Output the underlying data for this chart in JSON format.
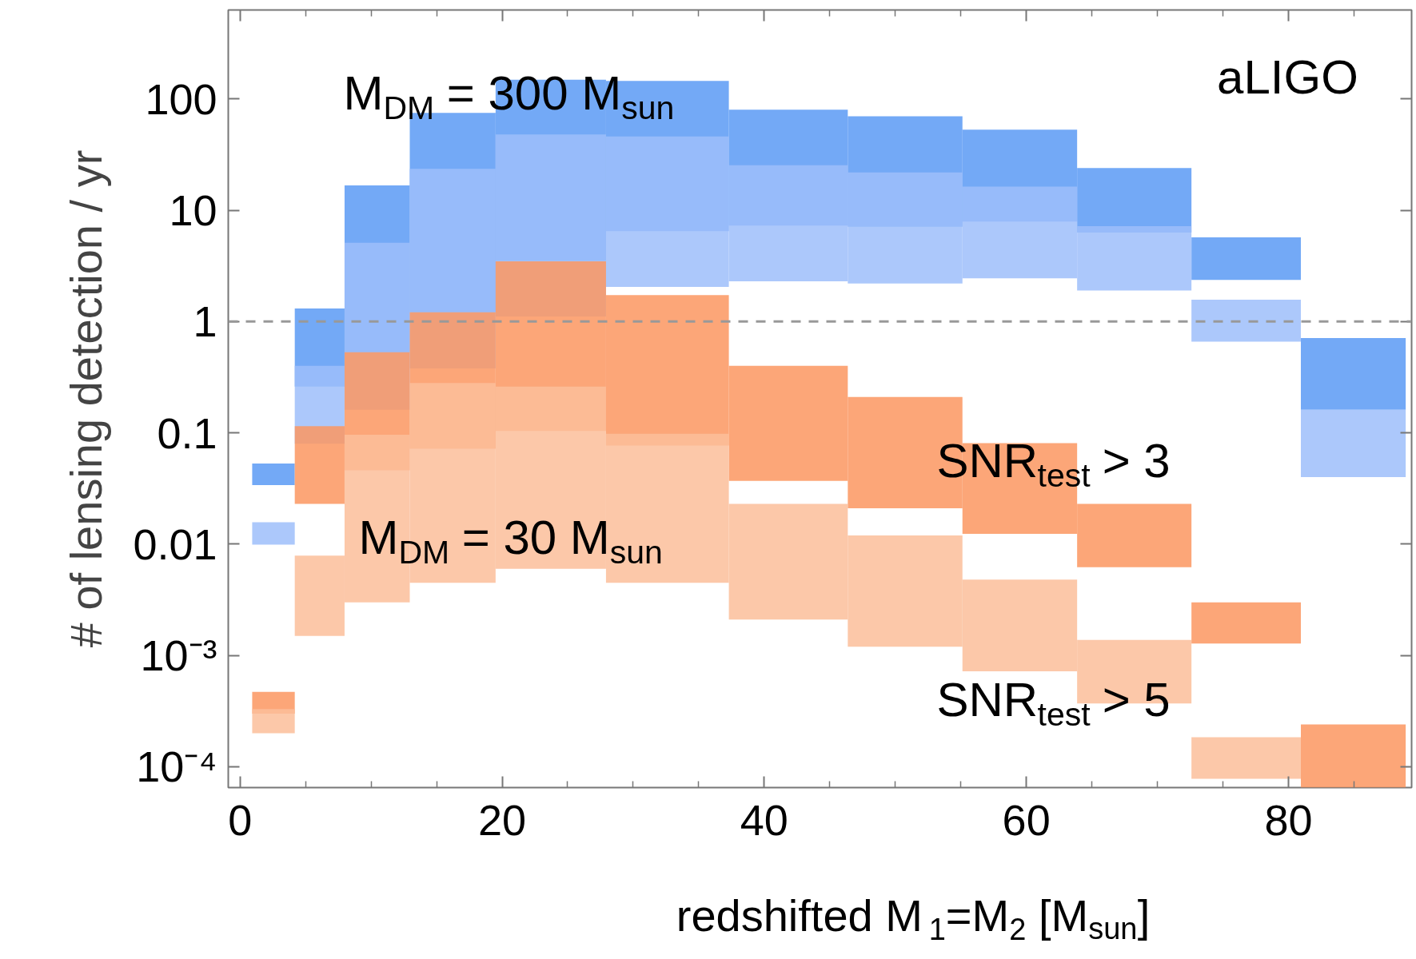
{
  "chart_data": {
    "type": "bar",
    "x": [
      2.55,
      5.8,
      10.15,
      15.75,
      23.25,
      32.6,
      42,
      50.75,
      59.5,
      68.25,
      76.95,
      84.95
    ],
    "series": [
      {
        "color": "#5a9af5",
        "base": [
          0.034,
          0.26,
          0.53,
          1.21,
          3.5,
          6.5,
          7.3,
          7.1,
          7.9,
          6.3,
          2.37,
          0.161
        ],
        "values": [
          0.019,
          1.05,
          16.2,
          73.8,
          145.5,
          138.5,
          72.7,
          62.9,
          45.1,
          17.7,
          3.33,
          0.549
        ]
      },
      {
        "color": "#9dbefa",
        "base": [
          0.0099,
          0.08,
          0.161,
          0.38,
          1.11,
          2.05,
          2.3,
          2.2,
          2.45,
          1.9,
          0.66,
          0.04
        ],
        "values": [
          0.0058,
          0.32,
          4.939,
          23.22,
          46.89,
          43.95,
          23.1,
          19.7,
          13.85,
          5.3,
          0.91,
          0.121
        ]
      },
      {
        "color": "#fb9660",
        "base": [
          0.0003,
          0.023,
          0.046,
          0.072,
          0.104,
          0.077,
          0.037,
          0.021,
          0.0124,
          0.0062,
          0.00128,
          6.5e-05
        ],
        "values": [
          0.00017,
          0.092,
          0.484,
          1.138,
          3.366,
          1.653,
          0.363,
          0.189,
          0.0686,
          0.0168,
          0.00172,
          0.000175
        ]
      },
      {
        "color": "#fbbe9a",
        "base": [
          0.0002,
          0.0015,
          0.003,
          0.0045,
          0.006,
          0.0045,
          0.0021,
          0.0012,
          0.00072,
          0.00037,
          7.8e-05,
          null
        ],
        "values": [
          0.00013,
          0.0064,
          0.093,
          0.2755,
          0.254,
          0.0935,
          0.0209,
          0.0108,
          0.00408,
          0.00101,
          0.000106,
          null
        ]
      }
    ],
    "log": "y",
    "xlim": [
      -0.9,
      89.4
    ],
    "ylim": [
      6.5e-05,
      630
    ],
    "xticks": [
      0,
      {
        "value": 5,
        "label": null
      },
      {
        "value": 10,
        "label": null
      },
      {
        "value": 15,
        "label": null
      },
      20,
      {
        "value": 25,
        "label": null
      },
      {
        "value": 30,
        "label": null
      },
      {
        "value": 35,
        "label": null
      },
      40,
      {
        "value": 45,
        "label": null
      },
      {
        "value": 50,
        "label": null
      },
      {
        "value": 55,
        "label": null
      },
      60,
      {
        "value": 65,
        "label": null
      },
      {
        "value": 70,
        "label": null
      },
      {
        "value": 75,
        "label": null
      },
      80,
      {
        "value": 85,
        "label": null
      }
    ],
    "yticks": [
      {
        "value": 0.0001,
        "label": "10⁻⁴"
      },
      {
        "value": 0.001,
        "label": "10⁻³"
      },
      0.01,
      0.1,
      1,
      10,
      100
    ],
    "xlabel": "redshifted M$_{1}$=M$_{2}$ [M$_{sun}$]",
    "ylabel": "# of lensing detection / yr",
    "ref_lines": [
      {
        "axis": "y",
        "value": 1,
        "color": "#999999",
        "line_style": "dashed"
      }
    ],
    "annotations": [
      "M$_{DM}$ = 300 M$_{sun}$",
      "M$_{DM}$ = 30 M$_{sun}$",
      "SNR$_{test}$ > 3",
      "SNR$_{test}$ > 5",
      "aLIGO"
    ],
    "grid": false
  }
}
